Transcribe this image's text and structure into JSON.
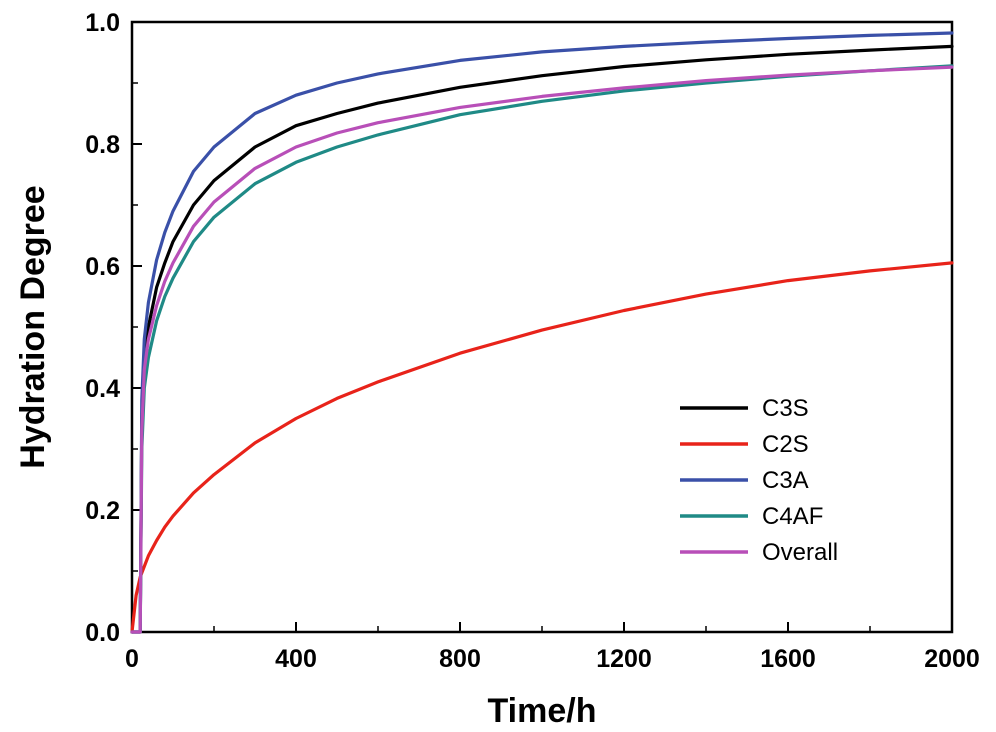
{
  "chart_data": {
    "type": "line",
    "title": "",
    "xlabel": "Time/h",
    "ylabel": "Hydration Degree",
    "xlim": [
      0,
      2000
    ],
    "ylim": [
      0.0,
      1.0
    ],
    "xticks": [
      0,
      400,
      800,
      1200,
      1600,
      2000
    ],
    "xtick_labels": [
      "0",
      "400",
      "800",
      "1200",
      "1600",
      "2000"
    ],
    "yticks": [
      0.0,
      0.2,
      0.4,
      0.6,
      0.8,
      1.0
    ],
    "ytick_labels": [
      "0.0",
      "0.2",
      "0.4",
      "0.6",
      "0.8",
      "1.0"
    ],
    "grid": false,
    "legend_position": "bottom-right",
    "series": [
      {
        "name": "C3S",
        "color": "#000000",
        "x": [
          0,
          20,
          24,
          30,
          40,
          60,
          80,
          100,
          150,
          200,
          300,
          400,
          500,
          600,
          800,
          1000,
          1200,
          1400,
          1600,
          1800,
          2000
        ],
        "y": [
          0.0,
          0.0,
          0.35,
          0.45,
          0.5,
          0.565,
          0.605,
          0.64,
          0.7,
          0.74,
          0.795,
          0.83,
          0.85,
          0.867,
          0.893,
          0.912,
          0.927,
          0.938,
          0.947,
          0.954,
          0.96
        ]
      },
      {
        "name": "C2S",
        "color": "#e8231a",
        "x": [
          0,
          10,
          20,
          40,
          60,
          80,
          100,
          150,
          200,
          300,
          400,
          500,
          600,
          800,
          1000,
          1200,
          1400,
          1600,
          1800,
          2000
        ],
        "y": [
          0.0,
          0.06,
          0.09,
          0.125,
          0.15,
          0.172,
          0.19,
          0.228,
          0.258,
          0.31,
          0.35,
          0.383,
          0.41,
          0.457,
          0.495,
          0.527,
          0.554,
          0.576,
          0.592,
          0.605
        ]
      },
      {
        "name": "C3A",
        "color": "#3a50a8",
        "x": [
          0,
          20,
          24,
          30,
          40,
          60,
          80,
          100,
          150,
          200,
          300,
          400,
          500,
          600,
          800,
          1000,
          1200,
          1400,
          1600,
          1800,
          2000
        ],
        "y": [
          0.0,
          0.0,
          0.38,
          0.48,
          0.54,
          0.61,
          0.655,
          0.69,
          0.755,
          0.795,
          0.85,
          0.88,
          0.9,
          0.915,
          0.937,
          0.951,
          0.96,
          0.967,
          0.973,
          0.978,
          0.982
        ]
      },
      {
        "name": "C4AF",
        "color": "#1f8a86",
        "x": [
          0,
          20,
          24,
          30,
          40,
          60,
          80,
          100,
          150,
          200,
          300,
          400,
          500,
          600,
          800,
          1000,
          1200,
          1400,
          1600,
          1800,
          2000
        ],
        "y": [
          0.0,
          0.0,
          0.3,
          0.4,
          0.45,
          0.51,
          0.55,
          0.58,
          0.64,
          0.68,
          0.735,
          0.77,
          0.795,
          0.815,
          0.848,
          0.87,
          0.887,
          0.9,
          0.911,
          0.92,
          0.928
        ]
      },
      {
        "name": "Overall",
        "color": "#b84fb8",
        "x": [
          0,
          20,
          24,
          30,
          40,
          60,
          80,
          100,
          150,
          200,
          300,
          400,
          500,
          600,
          800,
          1000,
          1200,
          1400,
          1600,
          1800,
          2000
        ],
        "y": [
          0.0,
          0.0,
          0.33,
          0.43,
          0.48,
          0.535,
          0.575,
          0.605,
          0.665,
          0.705,
          0.76,
          0.795,
          0.818,
          0.835,
          0.86,
          0.878,
          0.892,
          0.904,
          0.913,
          0.92,
          0.926
        ]
      }
    ]
  }
}
